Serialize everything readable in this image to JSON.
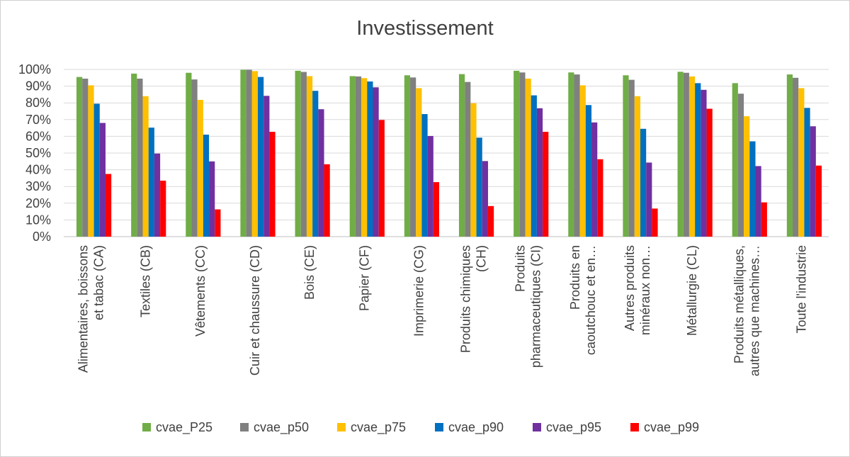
{
  "chart_data": {
    "type": "bar",
    "title": "Investissement",
    "xlabel": "",
    "ylabel": "",
    "ylim": [
      0,
      1
    ],
    "y_ticks": [
      "0%",
      "10%",
      "20%",
      "30%",
      "40%",
      "50%",
      "60%",
      "70%",
      "80%",
      "90%",
      "100%"
    ],
    "grid": true,
    "legend_position": "bottom",
    "categories": [
      [
        "Alimentaires, boissons",
        "et tabac (CA)"
      ],
      [
        "Textiles (CB)"
      ],
      [
        "Vêtements (CC)"
      ],
      [
        "Cuir et chaussure (CD)"
      ],
      [
        "Bois (CE)"
      ],
      [
        "Papier (CF)"
      ],
      [
        "Imprimerie (CG)"
      ],
      [
        "Produits chimiques",
        "(CH)"
      ],
      [
        "Produits",
        "pharmaceutiques (CI)"
      ],
      [
        "Produits en",
        "caoutchouc et en…"
      ],
      [
        "Autres produits",
        "minéraux non…"
      ],
      [
        "Métallurgie (CL)"
      ],
      [
        "Produits métalliques,",
        "autres que machines…"
      ],
      [
        "Toute l'industrie"
      ]
    ],
    "series": [
      {
        "name": "cvae_P25",
        "color": "#70ad47",
        "values": [
          0.955,
          0.975,
          0.98,
          0.998,
          0.992,
          0.96,
          0.965,
          0.972,
          0.992,
          0.982,
          0.965,
          0.986,
          0.918,
          0.97
        ]
      },
      {
        "name": "cvae_p50",
        "color": "#808080",
        "values": [
          0.945,
          0.945,
          0.94,
          0.998,
          0.985,
          0.958,
          0.952,
          0.925,
          0.982,
          0.97,
          0.938,
          0.98,
          0.855,
          0.95
        ]
      },
      {
        "name": "cvae_p75",
        "color": "#ffc000",
        "values": [
          0.905,
          0.84,
          0.818,
          0.99,
          0.96,
          0.948,
          0.888,
          0.798,
          0.945,
          0.905,
          0.84,
          0.958,
          0.72,
          0.888
        ]
      },
      {
        "name": "cvae_p90",
        "color": "#0070c0",
        "values": [
          0.795,
          0.652,
          0.61,
          0.955,
          0.872,
          0.928,
          0.733,
          0.592,
          0.845,
          0.787,
          0.645,
          0.918,
          0.57,
          0.77
        ]
      },
      {
        "name": "cvae_p95",
        "color": "#7030a0",
        "values": [
          0.68,
          0.497,
          0.45,
          0.842,
          0.762,
          0.893,
          0.602,
          0.452,
          0.768,
          0.683,
          0.443,
          0.878,
          0.422,
          0.66
        ]
      },
      {
        "name": "cvae_p99",
        "color": "#ff0000",
        "values": [
          0.375,
          0.335,
          0.163,
          0.627,
          0.433,
          0.698,
          0.326,
          0.183,
          0.627,
          0.463,
          0.168,
          0.765,
          0.205,
          0.425
        ]
      }
    ]
  }
}
